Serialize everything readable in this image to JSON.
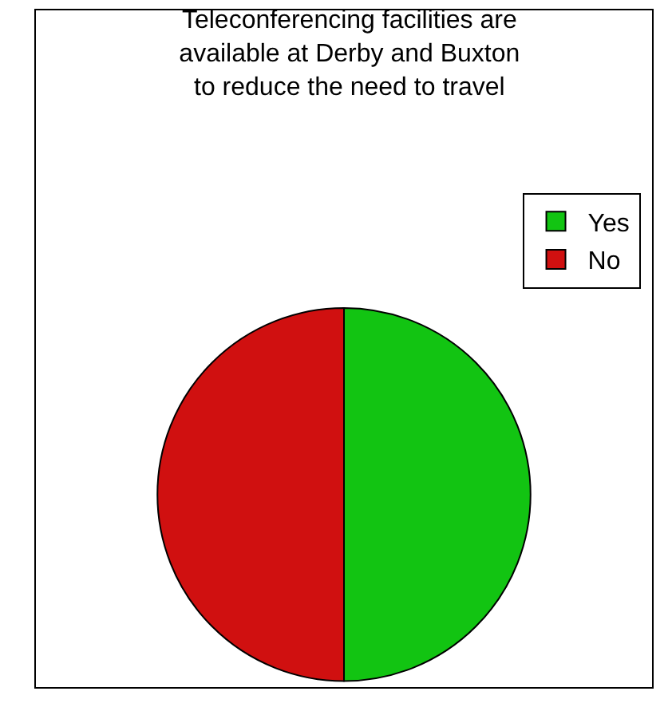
{
  "chart_data": {
    "type": "pie",
    "title": "Teleconferencing facilities are available at Derby and Buxton to reduce the need to travel",
    "categories": [
      "Yes",
      "No"
    ],
    "values": [
      50,
      50
    ],
    "colors": [
      "#12c412",
      "#d01010"
    ],
    "legend": "top right"
  }
}
